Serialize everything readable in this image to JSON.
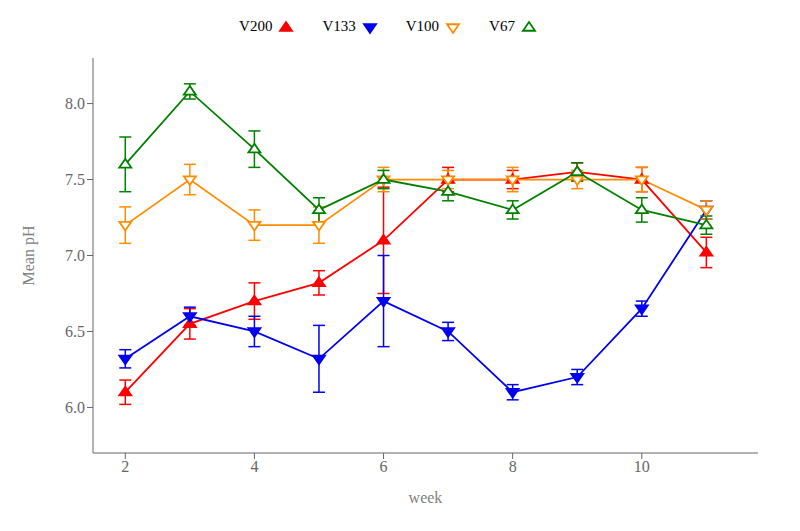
{
  "chart_data": {
    "type": "line",
    "xlabel": "week",
    "ylabel": "Mean pH",
    "x": [
      2,
      3,
      4,
      5,
      6,
      7,
      8,
      9,
      10,
      11
    ],
    "series": [
      {
        "name": "V200",
        "color": "#FF0000",
        "marker": "triangle-up",
        "values": [
          6.1,
          6.55,
          6.7,
          6.82,
          7.1,
          7.5,
          7.5,
          7.55,
          7.5,
          7.02
        ],
        "errors": [
          0.08,
          0.1,
          0.12,
          0.08,
          0.35,
          0.08,
          0.06,
          0.06,
          0.08,
          0.1
        ]
      },
      {
        "name": "V133",
        "color": "#0000EE",
        "marker": "triangle-down",
        "values": [
          6.32,
          6.6,
          6.5,
          6.32,
          6.7,
          6.5,
          6.1,
          6.2,
          6.65,
          7.3
        ],
        "errors": [
          0.06,
          0.06,
          0.1,
          0.22,
          0.3,
          0.06,
          0.05,
          0.05,
          0.05,
          0.06
        ]
      },
      {
        "name": "V100",
        "color": "#FF8C00",
        "marker": "triangle-down-open",
        "values": [
          7.2,
          7.5,
          7.2,
          7.2,
          7.5,
          7.5,
          7.5,
          7.5,
          7.5,
          7.3
        ],
        "errors": [
          0.12,
          0.1,
          0.1,
          0.12,
          0.08,
          0.06,
          0.08,
          0.06,
          0.08,
          0.06
        ]
      },
      {
        "name": "V67",
        "color": "#008000",
        "marker": "triangle-up-open",
        "values": [
          7.6,
          8.08,
          7.7,
          7.3,
          7.5,
          7.42,
          7.3,
          7.55,
          7.3,
          7.2
        ],
        "errors": [
          0.18,
          0.05,
          0.12,
          0.08,
          0.06,
          0.06,
          0.06,
          0.06,
          0.08,
          0.06
        ]
      }
    ],
    "xlim": [
      1.5,
      11.8
    ],
    "xticks": [
      2,
      4,
      6,
      8,
      10
    ],
    "ylim": [
      5.7,
      8.3
    ],
    "yticks": [
      {
        "value": 6.0,
        "label": "6.0"
      },
      6.5,
      {
        "value": 7.0,
        "label": "7.0"
      },
      7.5,
      {
        "value": 8.0,
        "label": "8.0"
      }
    ],
    "grid": false,
    "legend": "top"
  }
}
